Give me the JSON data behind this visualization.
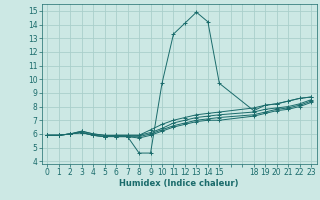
{
  "xlabel": "Humidex (Indice chaleur)",
  "bg_color": "#cce8e4",
  "grid_color": "#aacfcb",
  "line_color": "#1a6b6b",
  "xlim": [
    -0.5,
    23.5
  ],
  "ylim": [
    3.8,
    15.5
  ],
  "xtick_positions": [
    0,
    1,
    2,
    3,
    4,
    5,
    6,
    7,
    8,
    9,
    10,
    11,
    12,
    13,
    14,
    15,
    16,
    17,
    18,
    19,
    20,
    21,
    22,
    23
  ],
  "xtick_labels": [
    "0",
    "1",
    "2",
    "3",
    "4",
    "5",
    "6",
    "7",
    "8",
    "9",
    "10",
    "11",
    "12",
    "13",
    "14",
    "15",
    "",
    "",
    "18",
    "19",
    "20",
    "21",
    "22",
    "23"
  ],
  "ytick_positions": [
    4,
    5,
    6,
    7,
    8,
    9,
    10,
    11,
    12,
    13,
    14,
    15
  ],
  "ytick_labels": [
    "4",
    "5",
    "6",
    "7",
    "8",
    "9",
    "10",
    "11",
    "12",
    "13",
    "14",
    "15"
  ],
  "series": [
    {
      "x": [
        0,
        1,
        2,
        3,
        4,
        5,
        6,
        7,
        8,
        9,
        10,
        11,
        12,
        13,
        14,
        15,
        18,
        19,
        20,
        21,
        22,
        23
      ],
      "y": [
        5.9,
        5.9,
        6.0,
        6.2,
        6.0,
        5.9,
        5.8,
        5.8,
        4.6,
        4.6,
        9.7,
        13.3,
        14.1,
        14.9,
        14.2,
        9.7,
        7.7,
        8.1,
        8.2,
        8.4,
        8.6,
        8.7
      ]
    },
    {
      "x": [
        0,
        1,
        2,
        3,
        4,
        5,
        6,
        7,
        8,
        9,
        10,
        11,
        12,
        13,
        14,
        15,
        18,
        19,
        20,
        21,
        22,
        23
      ],
      "y": [
        5.9,
        5.9,
        6.0,
        6.2,
        6.0,
        5.9,
        5.9,
        5.9,
        5.9,
        6.3,
        6.7,
        7.0,
        7.2,
        7.4,
        7.5,
        7.6,
        7.9,
        8.1,
        8.2,
        8.4,
        8.6,
        8.7
      ]
    },
    {
      "x": [
        0,
        1,
        2,
        3,
        4,
        5,
        6,
        7,
        8,
        9,
        10,
        11,
        12,
        13,
        14,
        15,
        18,
        19,
        20,
        21,
        22,
        23
      ],
      "y": [
        5.9,
        5.9,
        6.0,
        6.1,
        5.9,
        5.8,
        5.9,
        5.9,
        5.9,
        6.1,
        6.4,
        6.8,
        7.0,
        7.2,
        7.3,
        7.4,
        7.6,
        7.8,
        7.9,
        8.0,
        8.2,
        8.5
      ]
    },
    {
      "x": [
        0,
        1,
        2,
        3,
        4,
        5,
        6,
        7,
        8,
        9,
        10,
        11,
        12,
        13,
        14,
        15,
        18,
        19,
        20,
        21,
        22,
        23
      ],
      "y": [
        5.9,
        5.9,
        6.0,
        6.1,
        5.9,
        5.8,
        5.9,
        5.8,
        5.8,
        6.0,
        6.3,
        6.6,
        6.8,
        7.0,
        7.1,
        7.2,
        7.4,
        7.6,
        7.8,
        7.9,
        8.1,
        8.4
      ]
    },
    {
      "x": [
        0,
        1,
        2,
        3,
        4,
        5,
        6,
        7,
        8,
        9,
        10,
        11,
        12,
        13,
        14,
        15,
        18,
        19,
        20,
        21,
        22,
        23
      ],
      "y": [
        5.9,
        5.9,
        6.0,
        6.1,
        5.9,
        5.8,
        5.8,
        5.8,
        5.7,
        5.9,
        6.2,
        6.5,
        6.7,
        6.9,
        7.0,
        7.0,
        7.3,
        7.5,
        7.7,
        7.8,
        8.0,
        8.3
      ]
    }
  ]
}
